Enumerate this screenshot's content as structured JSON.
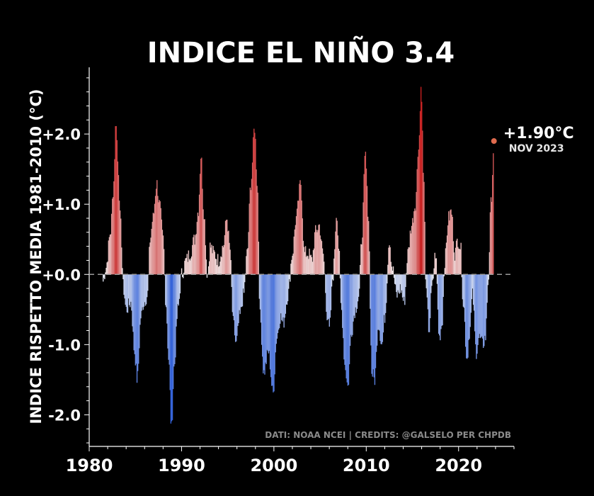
{
  "chart_data": {
    "type": "bar",
    "title": "INDICE EL NIÑO 3.4",
    "ylabel": "INDICE RISPETTO MEDIA 1981-2010 (°C)",
    "xlabel": "",
    "xlim": [
      1980,
      2026
    ],
    "ylim": [
      -2.45,
      2.95
    ],
    "x_ticks": [
      {
        "value": 1980,
        "label": "1980"
      },
      {
        "value": 1990,
        "label": "1990"
      },
      {
        "value": 2000,
        "label": "2000"
      },
      {
        "value": 2010,
        "label": "2010"
      },
      {
        "value": 2020,
        "label": "2020"
      }
    ],
    "y_ticks": [
      {
        "value": 2,
        "label": "+2.0"
      },
      {
        "value": 1,
        "label": "+1.0"
      },
      {
        "value": 0,
        "label": "+0.0"
      },
      {
        "value": -1,
        "label": "-1.0"
      },
      {
        "value": -2,
        "label": "-2.0"
      }
    ],
    "zero_line": "dashed",
    "color_scale": {
      "negative": "#2f5fd8",
      "neutral": "#f2f2f2",
      "positive": "#c81e1e"
    },
    "highlight": {
      "x": 2023.83,
      "value": 1.9,
      "label": "+1.90°C",
      "sublabel": "NOV 2023",
      "color": "#e06b4e"
    },
    "source_note": "DATI: NOAA NCEI | CREDITS: @GALSELO PER CHPDB",
    "grid": false,
    "anchors": [
      [
        1981.5,
        -0.1
      ],
      [
        1981.8,
        0.1
      ],
      [
        1982.3,
        0.6
      ],
      [
        1982.6,
        1.2
      ],
      [
        1982.9,
        2.2
      ],
      [
        1983.1,
        1.6
      ],
      [
        1983.4,
        0.7
      ],
      [
        1983.7,
        -0.2
      ],
      [
        1984.0,
        -0.5
      ],
      [
        1984.5,
        -0.4
      ],
      [
        1984.9,
        -1.1
      ],
      [
        1985.2,
        -1.5
      ],
      [
        1985.6,
        -0.6
      ],
      [
        1985.9,
        -0.4
      ],
      [
        1986.3,
        -0.3
      ],
      [
        1986.6,
        0.5
      ],
      [
        1986.9,
        0.8
      ],
      [
        1987.3,
        1.3
      ],
      [
        1987.6,
        1.0
      ],
      [
        1988.0,
        0.5
      ],
      [
        1988.3,
        -0.4
      ],
      [
        1988.6,
        -1.2
      ],
      [
        1988.9,
        -2.2
      ],
      [
        1989.2,
        -1.3
      ],
      [
        1989.6,
        -0.5
      ],
      [
        1990.0,
        0.0
      ],
      [
        1990.5,
        0.2
      ],
      [
        1990.9,
        0.3
      ],
      [
        1991.4,
        0.5
      ],
      [
        1991.8,
        0.9
      ],
      [
        1992.1,
        1.7
      ],
      [
        1992.4,
        0.9
      ],
      [
        1992.8,
        0.0
      ],
      [
        1993.1,
        0.4
      ],
      [
        1993.5,
        0.3
      ],
      [
        1994.0,
        0.2
      ],
      [
        1994.5,
        0.4
      ],
      [
        1994.9,
        0.8
      ],
      [
        1995.2,
        0.4
      ],
      [
        1995.6,
        -0.7
      ],
      [
        1995.9,
        -1.0
      ],
      [
        1996.3,
        -0.6
      ],
      [
        1996.7,
        -0.3
      ],
      [
        1997.1,
        0.3
      ],
      [
        1997.5,
        1.3
      ],
      [
        1997.9,
        2.1
      ],
      [
        1998.2,
        1.3
      ],
      [
        1998.5,
        -0.6
      ],
      [
        1998.9,
        -1.4
      ],
      [
        1999.4,
        -1.1
      ],
      [
        1999.9,
        -1.7
      ],
      [
        2000.3,
        -0.9
      ],
      [
        2000.7,
        -0.6
      ],
      [
        2001.0,
        -0.7
      ],
      [
        2001.5,
        -0.3
      ],
      [
        2002.0,
        0.3
      ],
      [
        2002.4,
        0.8
      ],
      [
        2002.9,
        1.3
      ],
      [
        2003.3,
        0.3
      ],
      [
        2003.7,
        0.3
      ],
      [
        2004.1,
        0.2
      ],
      [
        2004.5,
        0.6
      ],
      [
        2004.9,
        0.7
      ],
      [
        2005.3,
        0.3
      ],
      [
        2005.8,
        -0.6
      ],
      [
        2006.0,
        -0.8
      ],
      [
        2006.4,
        0.0
      ],
      [
        2006.8,
        0.9
      ],
      [
        2007.0,
        0.4
      ],
      [
        2007.3,
        -0.5
      ],
      [
        2007.7,
        -1.3
      ],
      [
        2008.0,
        -1.6
      ],
      [
        2008.4,
        -0.8
      ],
      [
        2008.8,
        -0.5
      ],
      [
        2009.2,
        -0.3
      ],
      [
        2009.5,
        0.5
      ],
      [
        2009.9,
        1.7
      ],
      [
        2010.2,
        0.9
      ],
      [
        2010.6,
        -1.4
      ],
      [
        2010.9,
        -1.5
      ],
      [
        2011.3,
        -0.7
      ],
      [
        2011.7,
        -1.0
      ],
      [
        2012.0,
        -0.6
      ],
      [
        2012.5,
        0.5
      ],
      [
        2012.8,
        0.1
      ],
      [
        2013.3,
        -0.3
      ],
      [
        2013.7,
        -0.2
      ],
      [
        2014.1,
        -0.4
      ],
      [
        2014.5,
        0.3
      ],
      [
        2014.9,
        0.7
      ],
      [
        2015.3,
        1.0
      ],
      [
        2015.7,
        1.9
      ],
      [
        2015.95,
        2.7
      ],
      [
        2016.2,
        1.4
      ],
      [
        2016.5,
        -0.3
      ],
      [
        2016.8,
        -0.8
      ],
      [
        2017.1,
        -0.2
      ],
      [
        2017.5,
        0.3
      ],
      [
        2017.9,
        -0.9
      ],
      [
        2018.2,
        -0.7
      ],
      [
        2018.5,
        0.2
      ],
      [
        2018.9,
        0.8
      ],
      [
        2019.2,
        0.9
      ],
      [
        2019.6,
        0.3
      ],
      [
        2019.9,
        0.5
      ],
      [
        2020.2,
        0.4
      ],
      [
        2020.5,
        -0.4
      ],
      [
        2020.9,
        -1.2
      ],
      [
        2021.2,
        -0.8
      ],
      [
        2021.5,
        -0.3
      ],
      [
        2021.9,
        -1.1
      ],
      [
        2022.2,
        -0.9
      ],
      [
        2022.6,
        -1.0
      ],
      [
        2022.9,
        -0.9
      ],
      [
        2023.2,
        -0.1
      ],
      [
        2023.5,
        1.0
      ],
      [
        2023.83,
        1.9
      ]
    ]
  }
}
